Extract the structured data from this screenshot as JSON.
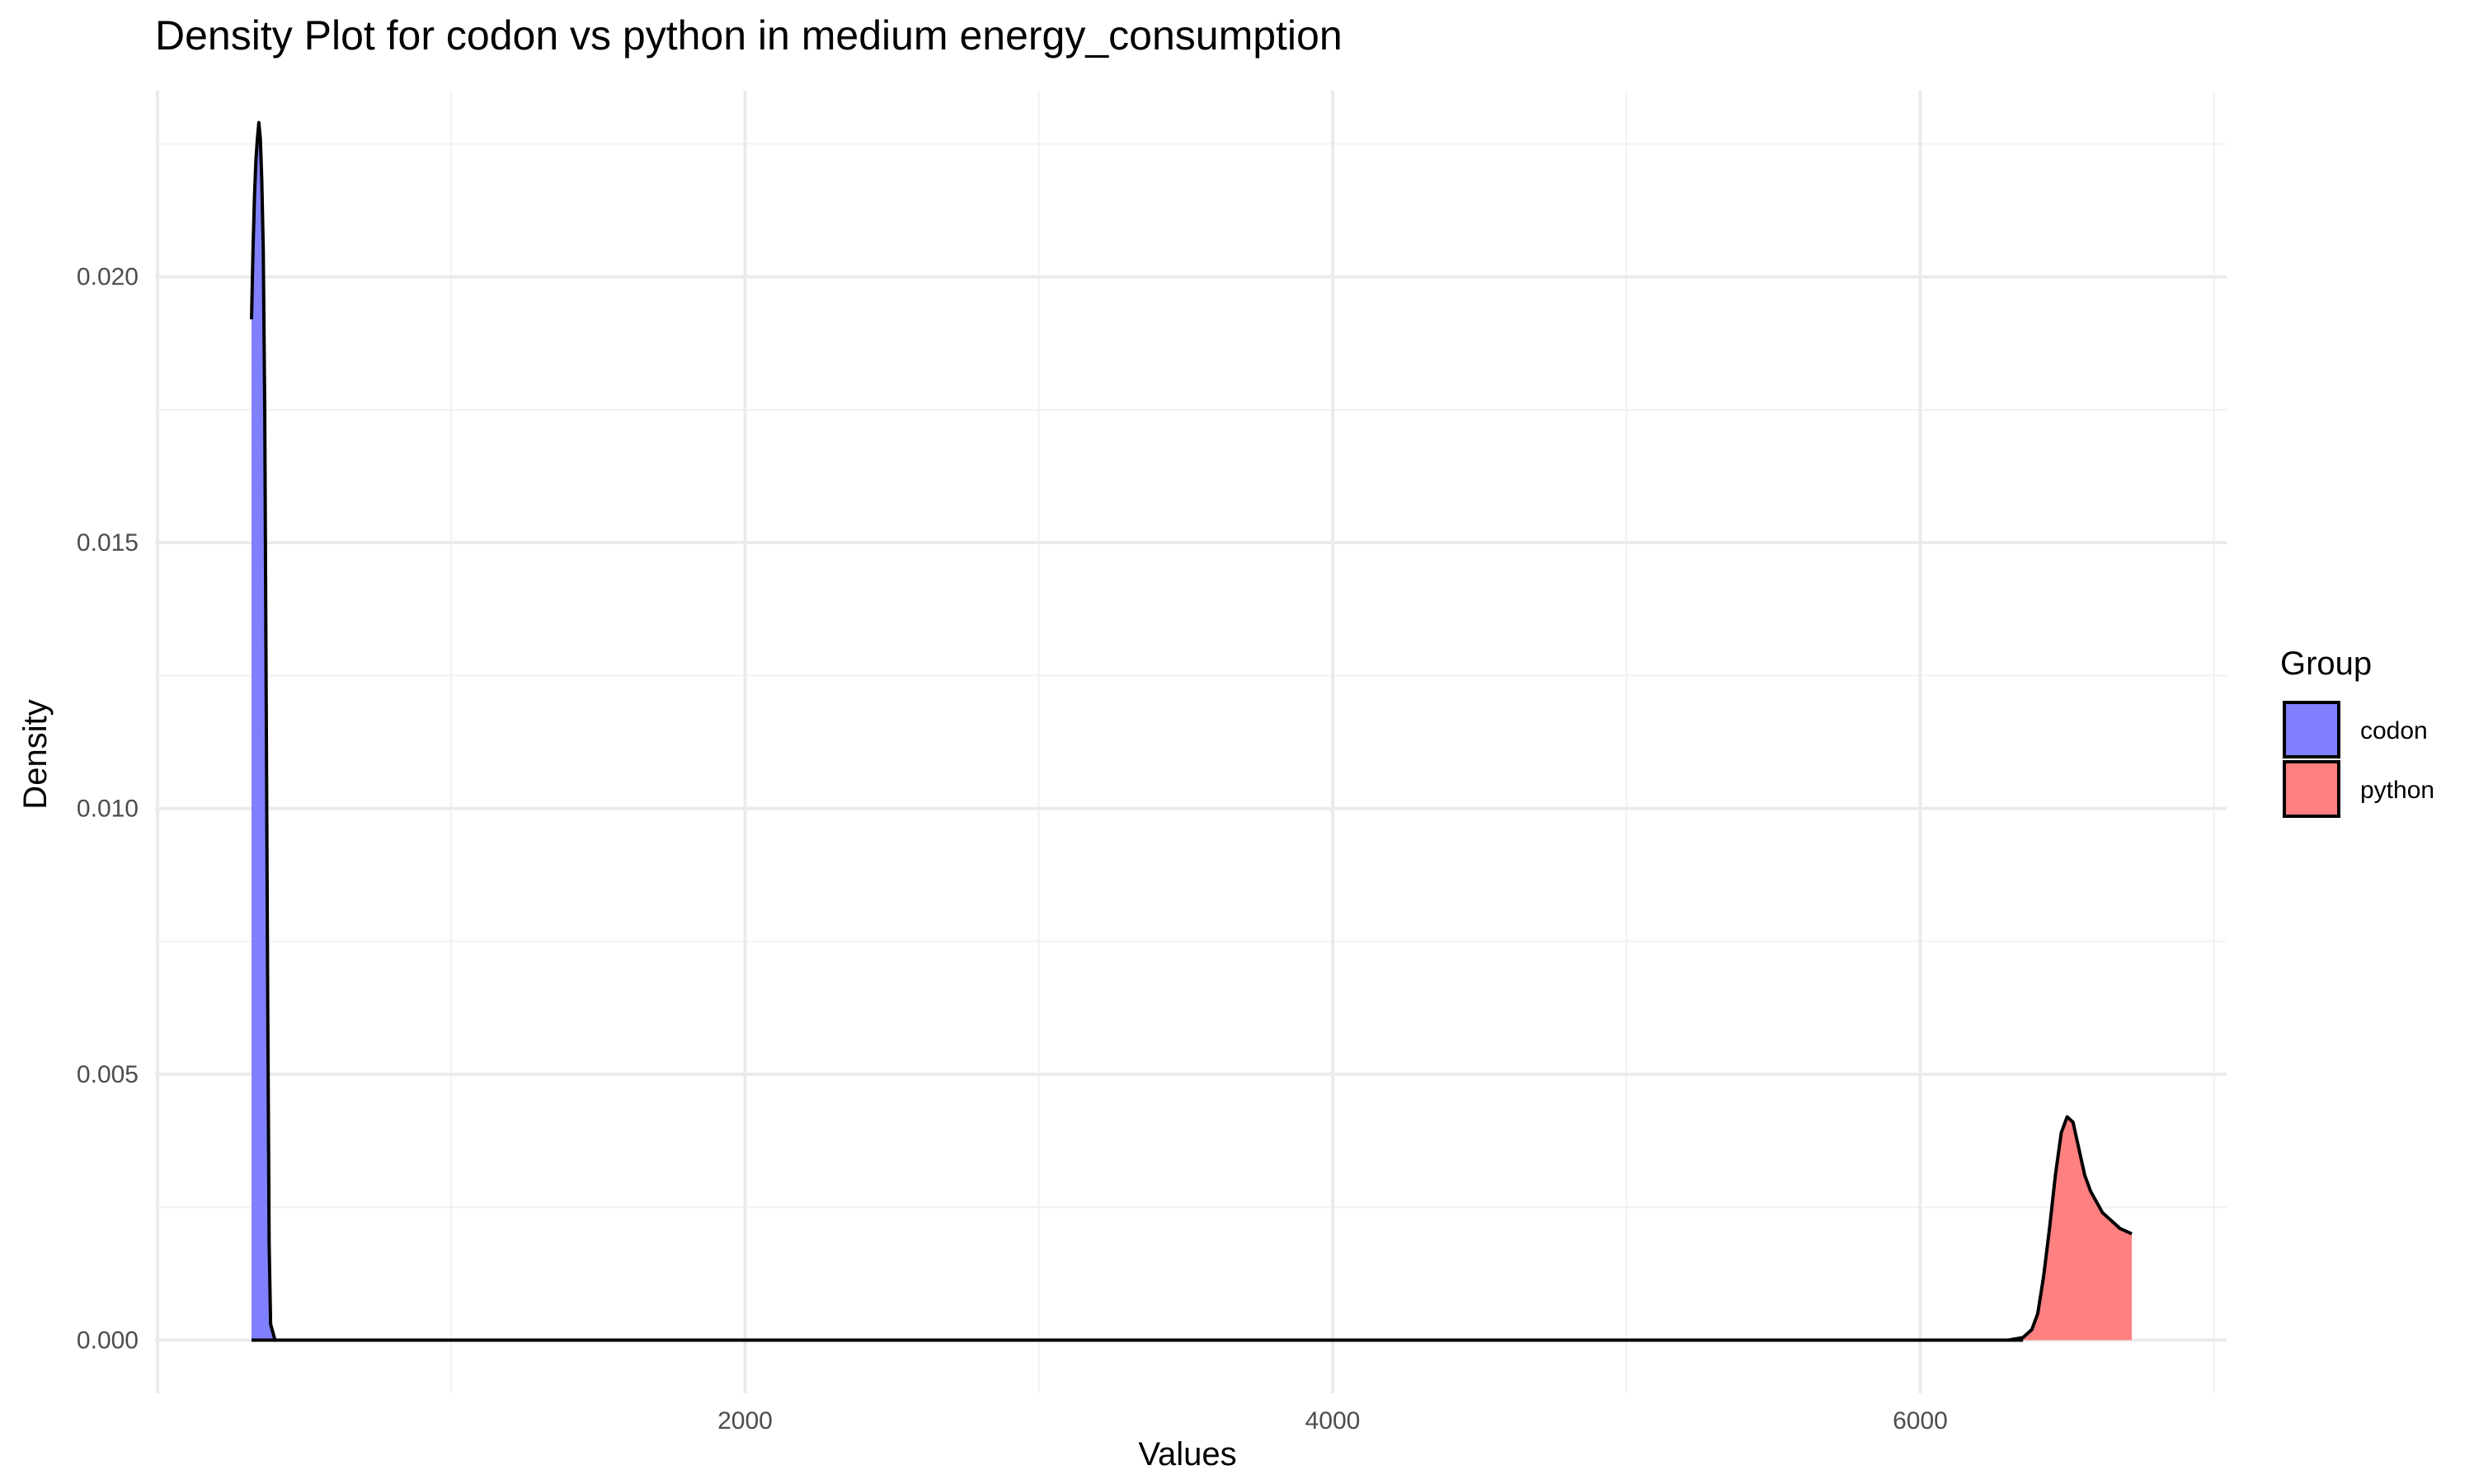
{
  "chart_data": {
    "type": "area",
    "title": "Density Plot for codon vs python in medium energy_consumption",
    "xlabel": "Values",
    "ylabel": "Density",
    "xlim": [
      0,
      7000
    ],
    "ylim": [
      -0.001,
      0.0235
    ],
    "x_ticks": [
      2000,
      4000,
      6000
    ],
    "x_tick_labels": [
      "2000",
      "4000",
      "6000"
    ],
    "y_ticks": [
      0.0,
      0.005,
      0.01,
      0.015,
      0.02
    ],
    "y_tick_labels": [
      "0.000",
      "0.005",
      "0.010",
      "0.015",
      "0.020"
    ],
    "grid": true,
    "legend": {
      "title": "Group",
      "position": "right"
    },
    "series": [
      {
        "name": "codon",
        "color": "#8080ff",
        "x": [
          320,
          325,
          330,
          335,
          340,
          345,
          350,
          355,
          360,
          365,
          370,
          375,
          380,
          385,
          400,
          500,
          1000,
          2000,
          3000,
          4000,
          5000,
          6000,
          6300,
          6350
        ],
        "y": [
          0.0192,
          0.0205,
          0.0215,
          0.0222,
          0.0226,
          0.0229,
          0.0226,
          0.0218,
          0.0205,
          0.0175,
          0.012,
          0.0065,
          0.0018,
          0.0003,
          0.0,
          0.0,
          0.0,
          0.0,
          0.0,
          0.0,
          0.0,
          0.0,
          0.0,
          0.0
        ]
      },
      {
        "name": "python",
        "color": "#ff8080",
        "x": [
          320,
          1000,
          2000,
          3000,
          4000,
          5000,
          6000,
          6200,
          6300,
          6350,
          6380,
          6400,
          6420,
          6440,
          6460,
          6480,
          6500,
          6520,
          6540,
          6560,
          6580,
          6600,
          6620,
          6640,
          6660,
          6680,
          6700,
          6720
        ],
        "y": [
          0.0,
          0.0,
          0.0,
          0.0,
          0.0,
          0.0,
          0.0,
          0.0,
          0.0,
          5e-05,
          0.0002,
          0.0005,
          0.0012,
          0.0021,
          0.0031,
          0.0039,
          0.0042,
          0.0041,
          0.0036,
          0.0031,
          0.0028,
          0.0026,
          0.0024,
          0.0023,
          0.0022,
          0.0021,
          0.00205,
          0.002
        ]
      }
    ]
  }
}
